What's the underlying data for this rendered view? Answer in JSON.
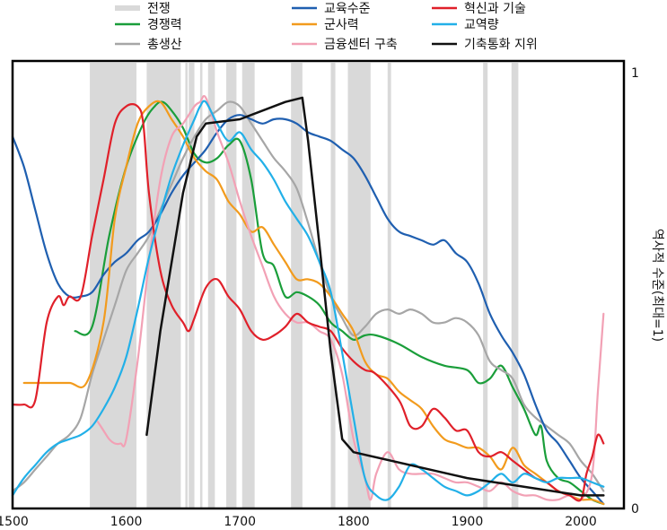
{
  "chart_data": {
    "type": "line",
    "title": "",
    "xlabel": "",
    "ylabel": "역사적 수준(최대=1)",
    "xlim": [
      1500,
      2030
    ],
    "ylim": [
      0,
      1
    ],
    "x_ticks": [
      "1500",
      "1600",
      "1700",
      "1800",
      "1900",
      "2000"
    ],
    "y_ticks": [
      "0",
      "1"
    ],
    "legend": {
      "war_label": "전쟁",
      "war_color": "#d9d9d9",
      "entries": [
        {
          "name": "경쟁력",
          "color": "#1a9e3a"
        },
        {
          "name": "총생산",
          "color": "#a6a6a6"
        },
        {
          "name": "교육수준",
          "color": "#1f5fb0"
        },
        {
          "name": "군사력",
          "color": "#f29b1d"
        },
        {
          "name": "금융센터 구축",
          "color": "#f2a1b5"
        },
        {
          "name": "혁신과 기술",
          "color": "#e0202a"
        },
        {
          "name": "교역량",
          "color": "#22b0e8"
        },
        {
          "name": "기축통화 지위",
          "color": "#111111"
        }
      ]
    },
    "war_periods": [
      [
        1568,
        1609
      ],
      [
        1618,
        1648
      ],
      [
        1652,
        1654
      ],
      [
        1655,
        1660
      ],
      [
        1665,
        1667
      ],
      [
        1672,
        1678
      ],
      [
        1688,
        1697
      ],
      [
        1702,
        1713
      ],
      [
        1745,
        1755
      ],
      [
        1780,
        1784
      ],
      [
        1795,
        1815
      ],
      [
        1830,
        1833
      ],
      [
        1914,
        1918
      ],
      [
        1939,
        1945
      ]
    ],
    "series": [
      {
        "name": "경쟁력",
        "color": "#1a9e3a",
        "x": [
          1555,
          1570,
          1585,
          1600,
          1615,
          1625,
          1632,
          1640,
          1650,
          1660,
          1670,
          1680,
          1690,
          1700,
          1710,
          1720,
          1730,
          1740,
          1750,
          1760,
          1770,
          1780,
          1790,
          1800,
          1810,
          1820,
          1840,
          1860,
          1880,
          1900,
          1910,
          1920,
          1930,
          1940,
          1950,
          1960,
          1965,
          1970,
          1980,
          1990,
          2000,
          2010,
          2020
        ],
        "y": [
          0.4,
          0.41,
          0.62,
          0.78,
          0.88,
          0.92,
          0.93,
          0.91,
          0.87,
          0.81,
          0.79,
          0.8,
          0.83,
          0.84,
          0.75,
          0.58,
          0.55,
          0.48,
          0.49,
          0.48,
          0.46,
          0.42,
          0.4,
          0.38,
          0.39,
          0.39,
          0.37,
          0.34,
          0.32,
          0.31,
          0.28,
          0.29,
          0.32,
          0.27,
          0.22,
          0.16,
          0.18,
          0.1,
          0.06,
          0.05,
          0.03,
          0.01,
          0.0
        ]
      },
      {
        "name": "총생산",
        "color": "#a6a6a6",
        "x": [
          1500,
          1510,
          1520,
          1530,
          1540,
          1550,
          1560,
          1570,
          1580,
          1590,
          1600,
          1610,
          1620,
          1630,
          1640,
          1650,
          1660,
          1670,
          1680,
          1690,
          1700,
          1710,
          1720,
          1730,
          1740,
          1750,
          1760,
          1770,
          1780,
          1790,
          1800,
          1810,
          1820,
          1830,
          1840,
          1850,
          1860,
          1870,
          1880,
          1890,
          1900,
          1910,
          1920,
          1930,
          1940,
          1950,
          1960,
          1970,
          1980,
          1990,
          2000,
          2010,
          2020
        ],
        "y": [
          0.03,
          0.05,
          0.08,
          0.11,
          0.14,
          0.16,
          0.2,
          0.3,
          0.38,
          0.46,
          0.54,
          0.58,
          0.62,
          0.68,
          0.74,
          0.8,
          0.85,
          0.89,
          0.91,
          0.93,
          0.92,
          0.88,
          0.84,
          0.8,
          0.77,
          0.73,
          0.65,
          0.56,
          0.48,
          0.43,
          0.39,
          0.41,
          0.44,
          0.45,
          0.44,
          0.45,
          0.44,
          0.42,
          0.42,
          0.43,
          0.42,
          0.39,
          0.33,
          0.31,
          0.29,
          0.23,
          0.2,
          0.18,
          0.16,
          0.14,
          0.1,
          0.07,
          0.03
        ]
      },
      {
        "name": "교육수준",
        "color": "#1f5fb0",
        "x": [
          1500,
          1510,
          1520,
          1530,
          1540,
          1550,
          1560,
          1570,
          1580,
          1590,
          1600,
          1610,
          1620,
          1630,
          1640,
          1650,
          1660,
          1670,
          1680,
          1690,
          1700,
          1710,
          1720,
          1730,
          1740,
          1750,
          1760,
          1770,
          1780,
          1790,
          1800,
          1810,
          1820,
          1830,
          1840,
          1850,
          1860,
          1870,
          1880,
          1890,
          1900,
          1910,
          1920,
          1930,
          1940,
          1950,
          1960,
          1970,
          1980,
          1990,
          2000,
          2010,
          2020
        ],
        "y": [
          0.85,
          0.78,
          0.68,
          0.58,
          0.51,
          0.48,
          0.48,
          0.49,
          0.53,
          0.56,
          0.58,
          0.61,
          0.63,
          0.67,
          0.72,
          0.76,
          0.79,
          0.82,
          0.86,
          0.89,
          0.9,
          0.89,
          0.88,
          0.89,
          0.89,
          0.88,
          0.86,
          0.85,
          0.84,
          0.82,
          0.8,
          0.76,
          0.71,
          0.66,
          0.63,
          0.62,
          0.61,
          0.6,
          0.61,
          0.58,
          0.56,
          0.51,
          0.44,
          0.39,
          0.35,
          0.3,
          0.23,
          0.17,
          0.14,
          0.1,
          0.06,
          0.03,
          0.0
        ]
      },
      {
        "name": "군사력",
        "color": "#f29b1d",
        "x": [
          1510,
          1530,
          1550,
          1565,
          1580,
          1590,
          1600,
          1610,
          1620,
          1630,
          1640,
          1650,
          1660,
          1670,
          1680,
          1690,
          1700,
          1710,
          1720,
          1730,
          1740,
          1750,
          1760,
          1770,
          1780,
          1790,
          1800,
          1810,
          1820,
          1830,
          1840,
          1850,
          1860,
          1870,
          1880,
          1890,
          1900,
          1910,
          1920,
          1930,
          1940,
          1950,
          1960,
          1970,
          1980,
          1990,
          2000,
          2010,
          2020
        ],
        "y": [
          0.28,
          0.28,
          0.28,
          0.28,
          0.42,
          0.66,
          0.78,
          0.88,
          0.92,
          0.93,
          0.89,
          0.85,
          0.8,
          0.77,
          0.75,
          0.7,
          0.67,
          0.63,
          0.64,
          0.6,
          0.56,
          0.52,
          0.52,
          0.51,
          0.48,
          0.44,
          0.4,
          0.33,
          0.3,
          0.29,
          0.26,
          0.24,
          0.22,
          0.18,
          0.15,
          0.14,
          0.13,
          0.13,
          0.11,
          0.08,
          0.13,
          0.09,
          0.07,
          0.05,
          0.03,
          0.02,
          0.01,
          0.01,
          0.0
        ]
      },
      {
        "name": "금융센터 구축",
        "color": "#f2a1b5",
        "x": [
          1575,
          1580,
          1585,
          1590,
          1595,
          1600,
          1610,
          1620,
          1630,
          1640,
          1650,
          1660,
          1665,
          1670,
          1680,
          1690,
          1700,
          1710,
          1720,
          1730,
          1740,
          1750,
          1760,
          1770,
          1780,
          1790,
          1800,
          1810,
          1815,
          1820,
          1830,
          1840,
          1850,
          1860,
          1870,
          1880,
          1890,
          1900,
          1910,
          1920,
          1930,
          1940,
          1950,
          1960,
          1970,
          1980,
          1990,
          2000,
          2010,
          2015,
          2020
        ],
        "y": [
          0.19,
          0.17,
          0.15,
          0.14,
          0.14,
          0.15,
          0.33,
          0.56,
          0.75,
          0.85,
          0.88,
          0.92,
          0.93,
          0.94,
          0.86,
          0.79,
          0.7,
          0.62,
          0.55,
          0.48,
          0.44,
          0.42,
          0.42,
          0.4,
          0.38,
          0.3,
          0.15,
          0.06,
          0.01,
          0.07,
          0.12,
          0.08,
          0.07,
          0.07,
          0.07,
          0.06,
          0.05,
          0.05,
          0.04,
          0.03,
          0.05,
          0.03,
          0.02,
          0.02,
          0.01,
          0.01,
          0.02,
          0.01,
          0.07,
          0.26,
          0.44
        ]
      },
      {
        "name": "혁신과 기술",
        "color": "#e0202a",
        "x": [
          1500,
          1510,
          1520,
          1530,
          1540,
          1545,
          1550,
          1560,
          1570,
          1580,
          1590,
          1600,
          1610,
          1615,
          1620,
          1630,
          1640,
          1650,
          1655,
          1660,
          1670,
          1680,
          1690,
          1700,
          1710,
          1720,
          1730,
          1740,
          1750,
          1760,
          1770,
          1780,
          1790,
          1800,
          1810,
          1820,
          1840,
          1850,
          1860,
          1870,
          1880,
          1890,
          1900,
          1910,
          1920,
          1930,
          1940,
          1950,
          1960,
          1970,
          1980,
          1990,
          2000,
          2005,
          2010,
          2015,
          2020
        ],
        "y": [
          0.23,
          0.23,
          0.24,
          0.42,
          0.48,
          0.46,
          0.48,
          0.48,
          0.62,
          0.75,
          0.88,
          0.92,
          0.92,
          0.88,
          0.72,
          0.54,
          0.46,
          0.42,
          0.4,
          0.43,
          0.5,
          0.52,
          0.48,
          0.45,
          0.4,
          0.38,
          0.39,
          0.41,
          0.44,
          0.42,
          0.41,
          0.4,
          0.36,
          0.33,
          0.31,
          0.3,
          0.24,
          0.18,
          0.18,
          0.22,
          0.2,
          0.17,
          0.17,
          0.12,
          0.11,
          0.12,
          0.1,
          0.08,
          0.06,
          0.05,
          0.03,
          0.02,
          0.01,
          0.07,
          0.11,
          0.16,
          0.14
        ]
      },
      {
        "name": "교역량",
        "color": "#22b0e8",
        "x": [
          1500,
          1510,
          1520,
          1530,
          1540,
          1550,
          1560,
          1570,
          1580,
          1590,
          1600,
          1610,
          1620,
          1630,
          1640,
          1650,
          1660,
          1665,
          1670,
          1680,
          1690,
          1700,
          1710,
          1720,
          1730,
          1740,
          1750,
          1760,
          1770,
          1780,
          1790,
          1800,
          1810,
          1820,
          1830,
          1840,
          1850,
          1860,
          1870,
          1880,
          1890,
          1900,
          1910,
          1920,
          1930,
          1940,
          1950,
          1960,
          1970,
          1980,
          1990,
          2000,
          2010,
          2020
        ],
        "y": [
          0.02,
          0.06,
          0.09,
          0.12,
          0.14,
          0.15,
          0.16,
          0.18,
          0.22,
          0.27,
          0.34,
          0.45,
          0.57,
          0.67,
          0.76,
          0.83,
          0.89,
          0.92,
          0.93,
          0.88,
          0.84,
          0.86,
          0.82,
          0.79,
          0.75,
          0.7,
          0.66,
          0.62,
          0.56,
          0.49,
          0.35,
          0.2,
          0.06,
          0.02,
          0.01,
          0.04,
          0.09,
          0.08,
          0.06,
          0.04,
          0.03,
          0.02,
          0.03,
          0.05,
          0.07,
          0.05,
          0.07,
          0.06,
          0.05,
          0.06,
          0.06,
          0.06,
          0.05,
          0.04
        ]
      },
      {
        "name": "기축통화 지위",
        "color": "#111111",
        "x": [
          1618,
          1630,
          1650,
          1662,
          1670,
          1700,
          1740,
          1755,
          1760,
          1770,
          1780,
          1790,
          1800,
          1900,
          2000,
          2020
        ],
        "y": [
          0.16,
          0.4,
          0.72,
          0.85,
          0.88,
          0.89,
          0.93,
          0.94,
          0.84,
          0.6,
          0.35,
          0.15,
          0.12,
          0.06,
          0.02,
          0.02
        ]
      }
    ]
  }
}
